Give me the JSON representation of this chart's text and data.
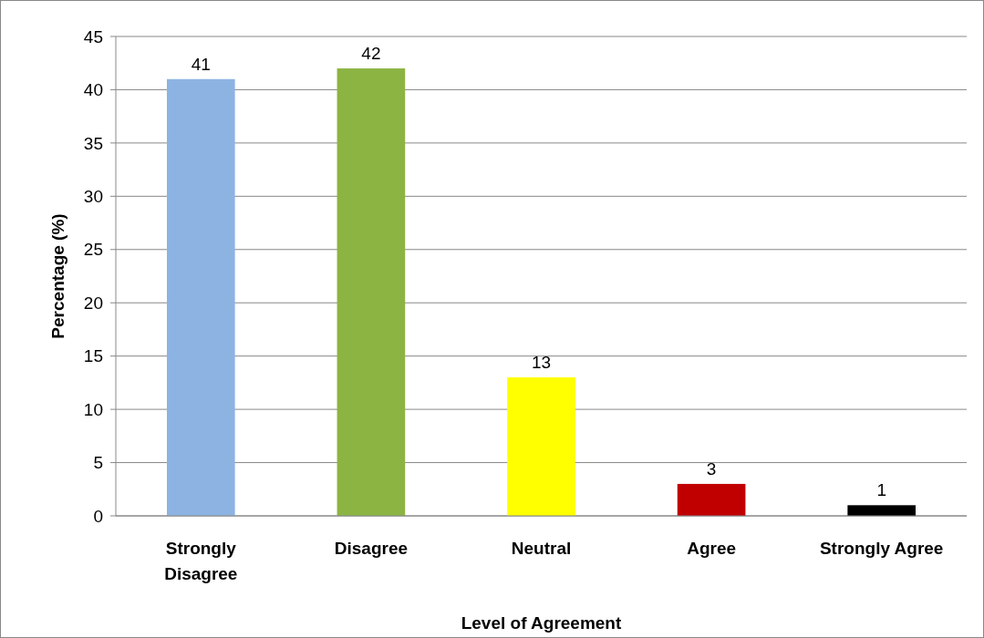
{
  "chart_data": {
    "type": "bar",
    "xlabel": "Level of Agreement",
    "ylabel": "Percentage (%)",
    "categories": [
      "Strongly Disagree",
      "Disagree",
      "Neutral",
      "Agree",
      "Strongly Agree"
    ],
    "values": [
      41,
      42,
      13,
      3,
      1
    ],
    "colors": [
      "#8db3e2",
      "#8cb443",
      "#ffff00",
      "#c00000",
      "#000000"
    ],
    "ylim": [
      0,
      45
    ],
    "yticks": [
      0,
      5,
      10,
      15,
      20,
      25,
      30,
      35,
      40,
      45
    ],
    "grid": "y",
    "data_labels": true
  }
}
